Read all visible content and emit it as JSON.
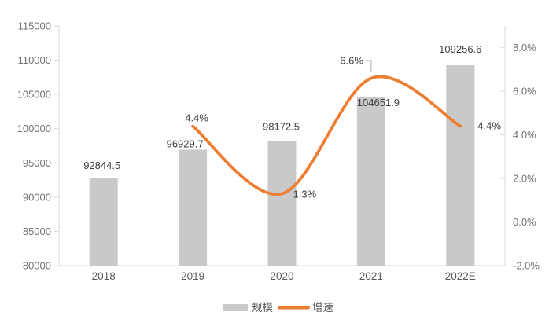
{
  "chart_data": {
    "type": "combo-bar-line",
    "title": "",
    "categories": [
      "2018",
      "2019",
      "2020",
      "2021",
      "2022E"
    ],
    "series": [
      {
        "name": "规模",
        "type": "bar",
        "axis": "left",
        "color": "#C9C9C9",
        "values": [
          92844.5,
          96929.7,
          98172.5,
          104651.9,
          109256.6
        ],
        "data_labels": [
          "92844.5",
          "96929.7",
          "98172.5",
          "104651.9",
          "109256.6"
        ],
        "label_offsets": [
          {
            "dx": -2,
            "dy": -11
          },
          {
            "dx": -10,
            "dy": -3
          },
          {
            "dx": -1,
            "dy": -14
          },
          {
            "dx": 9,
            "dy": 12
          },
          {
            "dx": 0,
            "dy": -16
          }
        ]
      },
      {
        "name": "增速",
        "type": "line",
        "axis": "right",
        "color": "#ED7D31",
        "smooth": true,
        "stroke_width": 3.75,
        "values": [
          null,
          4.4,
          1.3,
          6.6,
          4.4
        ],
        "data_labels": [
          null,
          "4.4%",
          "1.3%",
          "6.6%",
          "4.4%"
        ],
        "label_offsets": [
          null,
          {
            "dx": 5,
            "dy": -6,
            "anchor": "middle"
          },
          {
            "dx": 14,
            "dy": 5,
            "anchor": "start"
          },
          {
            "dx": -10,
            "dy": -18,
            "anchor": "end",
            "leader": true
          },
          {
            "dx": 22,
            "dy": 4,
            "anchor": "start"
          }
        ]
      }
    ],
    "left_axis": {
      "min": 80000,
      "max": 115000,
      "tick_step": 5000,
      "tick_labels": [
        "80000",
        "85000",
        "90000",
        "95000",
        "100000",
        "105000",
        "110000",
        "115000"
      ]
    },
    "right_axis": {
      "min": -2,
      "max": 9,
      "tick_values": [
        -2,
        0,
        2,
        4,
        6,
        8
      ],
      "tick_labels": [
        "-2.0%",
        "0.0%",
        "2.0%",
        "4.0%",
        "6.0%",
        "8.0%"
      ]
    },
    "legend": {
      "position": "bottom",
      "items": [
        {
          "label": "规模",
          "marker": "square",
          "color": "#C9C9C9"
        },
        {
          "label": "增速",
          "marker": "line",
          "color": "#ED7D31"
        }
      ]
    },
    "grid": false,
    "colors": {
      "background": "#FFFFFF",
      "axis_line": "#D9D9D9",
      "tick": "#D9D9D9",
      "axis_text": "#737373",
      "category_text": "#595959",
      "data_label_text": "#404040",
      "leader_line": "#A6A6A6"
    }
  }
}
